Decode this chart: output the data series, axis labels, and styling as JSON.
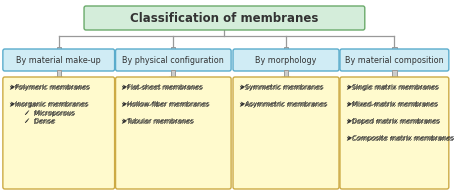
{
  "title": "Classification of membranes",
  "title_bg": "#d4edda",
  "title_border": "#6aaa6a",
  "category_bg": "#d0ecf5",
  "category_border": "#5aaccc",
  "detail_bg": "#fffacd",
  "detail_border": "#ccaa44",
  "categories": [
    "By material make-up",
    "By physical configuration",
    "By morphology",
    "By material composition"
  ],
  "details": [
    "➤Polymeric membranes\n\n➤Inorganic membranes\n       ✓  Microporous\n       ✓  Dense",
    "➤Flat-sheet membranes\n\n➤Hollow-fiber membranes\n\n➤Tubular membranes",
    "➤Symmetric membranes\n\n➤Asymmetric membranes",
    "➤Single matrix membranes\n\n➤Mixed-matrix membranes\n\n➤Doped matrix membranes\n\n➤Composite matrix membranes"
  ],
  "arrow_color": "#cccccc",
  "arrow_edge_color": "#999999",
  "text_color": "#333333",
  "bg_color": "#ffffff"
}
